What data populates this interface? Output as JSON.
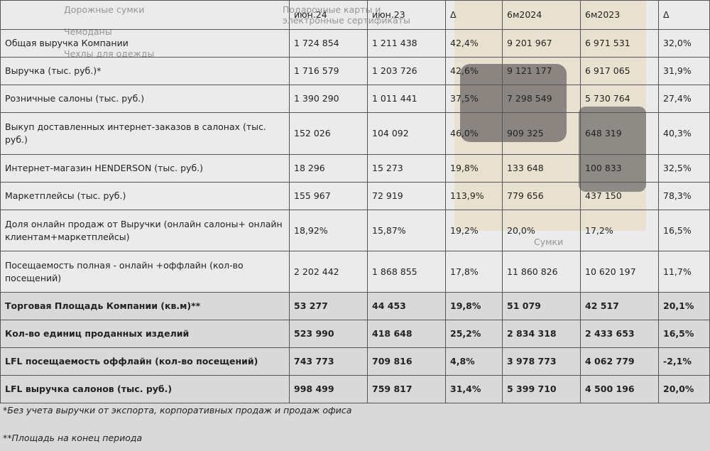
{
  "menu": {
    "items": [
      "Дорожные сумки",
      "Чемоданы",
      "Чехлы для одежды"
    ],
    "gift_cards": "Подарочные карты и электронные сертификаты",
    "bags": "Сумки"
  },
  "table": {
    "header": [
      "июн.24",
      "июн.23",
      "Δ",
      "6м2024",
      "6м2023",
      "Δ"
    ],
    "rows": [
      [
        "Общая выручка Компании",
        "1 724 854",
        "1 211 438",
        "42,4%",
        "9 201 967",
        "6 971 531",
        "32,0%"
      ],
      [
        "Выручка (тыс. руб.)*",
        "1 716 579",
        "1 203 726",
        "42,6%",
        "9 121 177",
        "6 917 065",
        "31,9%"
      ],
      [
        "Розничные салоны (тыс. руб.)",
        "1 390 290",
        "1 011 441",
        "37,5%",
        "7 298 549",
        "5 730 764",
        "27,4%"
      ],
      [
        "Выкуп доставленных интернет-заказов в салонах (тыс. руб.)",
        "152 026",
        "104 092",
        "46,0%",
        "909 325",
        "648 319",
        "40,3%"
      ],
      [
        "Интернет-магазин HENDERSON (тыс. руб.)",
        "18 296",
        "15 273",
        "19,8%",
        "133 648",
        "100 833",
        "32,5%"
      ],
      [
        "Маркетплейсы (тыс. руб.)",
        "155 967",
        "72 919",
        "113,9%",
        "779 656",
        "437 150",
        "78,3%"
      ],
      [
        "Доля онлайн продаж от Выручки (онлайн салоны+ онлайн клиентам+маркетплейсы)",
        "18,92%",
        "15,87%",
        "19,2%",
        "20,0%",
        "17,2%",
        "16,5%"
      ],
      [
        "Посещаемость полная - онлайн +оффлайн (кол-во посещений)",
        "2 202 442",
        "1 868 855",
        "17,8%",
        "11 860 826",
        "10 620 197",
        "11,7%"
      ],
      [
        "Торговая Площадь Компании (кв.м)**",
        "53 277",
        "44 453",
        "19,8%",
        "51 079",
        "42 517",
        "20,1%"
      ],
      [
        "Кол-во единиц проданных изделий",
        "523 990",
        "418 648",
        "25,2%",
        "2 834 318",
        "2 433 653",
        "16,5%"
      ],
      [
        "LFL посещаемость оффлайн (кол-во посещений)",
        "743 773",
        "709 816",
        "4,8%",
        "3 978 773",
        "4 062 779",
        "-2,1%"
      ],
      [
        "LFL выручка салонов (тыс. руб.)",
        "998 499",
        "759 817",
        "31,4%",
        "5 399 710",
        "4 500 196",
        "20,0%"
      ]
    ]
  },
  "footnotes": [
    "*Без учета выручки от экспорта, корпоративных продаж и продаж офиса",
    "**Площадь на конец периода"
  ]
}
